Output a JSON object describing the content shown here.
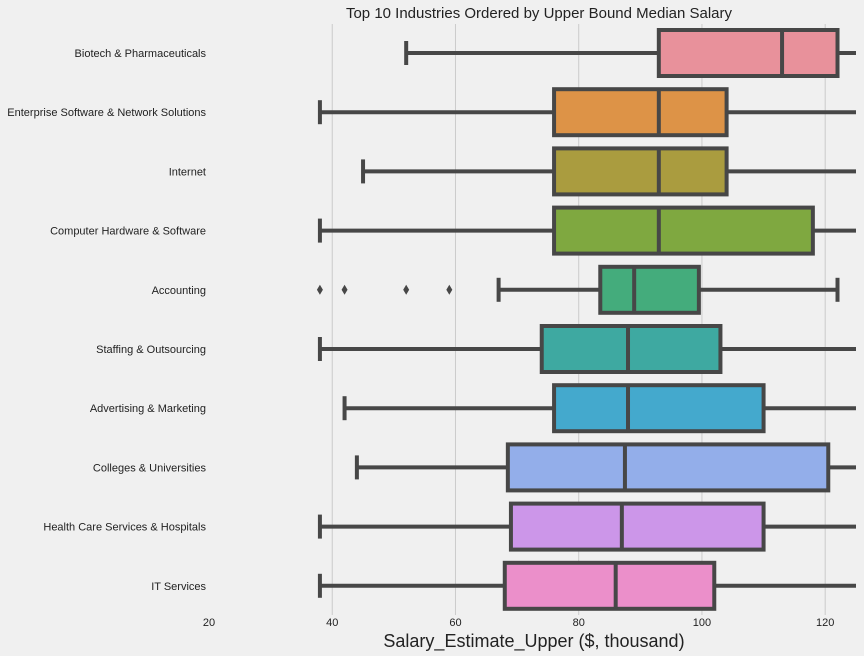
{
  "chart_data": {
    "type": "box",
    "orientation": "horizontal",
    "title": "Top 10 Industries Ordered by Upper Bound Median Salary",
    "xlabel": "Salary_Estimate_Upper ($, thousand)",
    "ylabel": "",
    "xlim": [
      20,
      125
    ],
    "xticks": [
      20,
      40,
      60,
      80,
      100,
      120
    ],
    "grid": "vertical",
    "series": [
      {
        "category": "Biotech & Pharmaceuticals",
        "whisker_low": 52,
        "q1": 93,
        "median": 113,
        "q3": 122,
        "whisker_high": 125,
        "outliers": [],
        "color": "#e8919b"
      },
      {
        "category": "Enterprise Software & Network Solutions",
        "whisker_low": 38,
        "q1": 76,
        "median": 93,
        "q3": 104,
        "whisker_high": 125,
        "outliers": [],
        "color": "#dd9347"
      },
      {
        "category": "Internet",
        "whisker_low": 45,
        "q1": 76,
        "median": 93,
        "q3": 104,
        "whisker_high": 125,
        "outliers": [],
        "color": "#aa9c3f"
      },
      {
        "category": "Computer Hardware & Software",
        "whisker_low": 38,
        "q1": 76,
        "median": 93,
        "q3": 118,
        "whisker_high": 125,
        "outliers": [],
        "color": "#7fa840"
      },
      {
        "category": "Accounting",
        "whisker_low": 67,
        "q1": 83.5,
        "median": 89,
        "q3": 99.5,
        "whisker_high": 122,
        "outliers": [
          38,
          42,
          52,
          59
        ],
        "color": "#44ac7c"
      },
      {
        "category": "Staffing & Outsourcing",
        "whisker_low": 38,
        "q1": 74,
        "median": 88,
        "q3": 103,
        "whisker_high": 125,
        "outliers": [],
        "color": "#3ea9a1"
      },
      {
        "category": "Advertising & Marketing",
        "whisker_low": 42,
        "q1": 76,
        "median": 88,
        "q3": 110,
        "whisker_high": 125,
        "outliers": [],
        "color": "#44a9cd"
      },
      {
        "category": "Colleges & Universities",
        "whisker_low": 44,
        "q1": 68.5,
        "median": 87.5,
        "q3": 120.5,
        "whisker_high": 125,
        "outliers": [],
        "color": "#93aeea"
      },
      {
        "category": "Health Care Services & Hospitals",
        "whisker_low": 38,
        "q1": 69,
        "median": 87,
        "q3": 110,
        "whisker_high": 125,
        "outliers": [],
        "color": "#cc96e9"
      },
      {
        "category": "IT Services",
        "whisker_low": 38,
        "q1": 68,
        "median": 86,
        "q3": 102,
        "whisker_high": 125,
        "outliers": [],
        "color": "#eb8fca"
      }
    ]
  }
}
